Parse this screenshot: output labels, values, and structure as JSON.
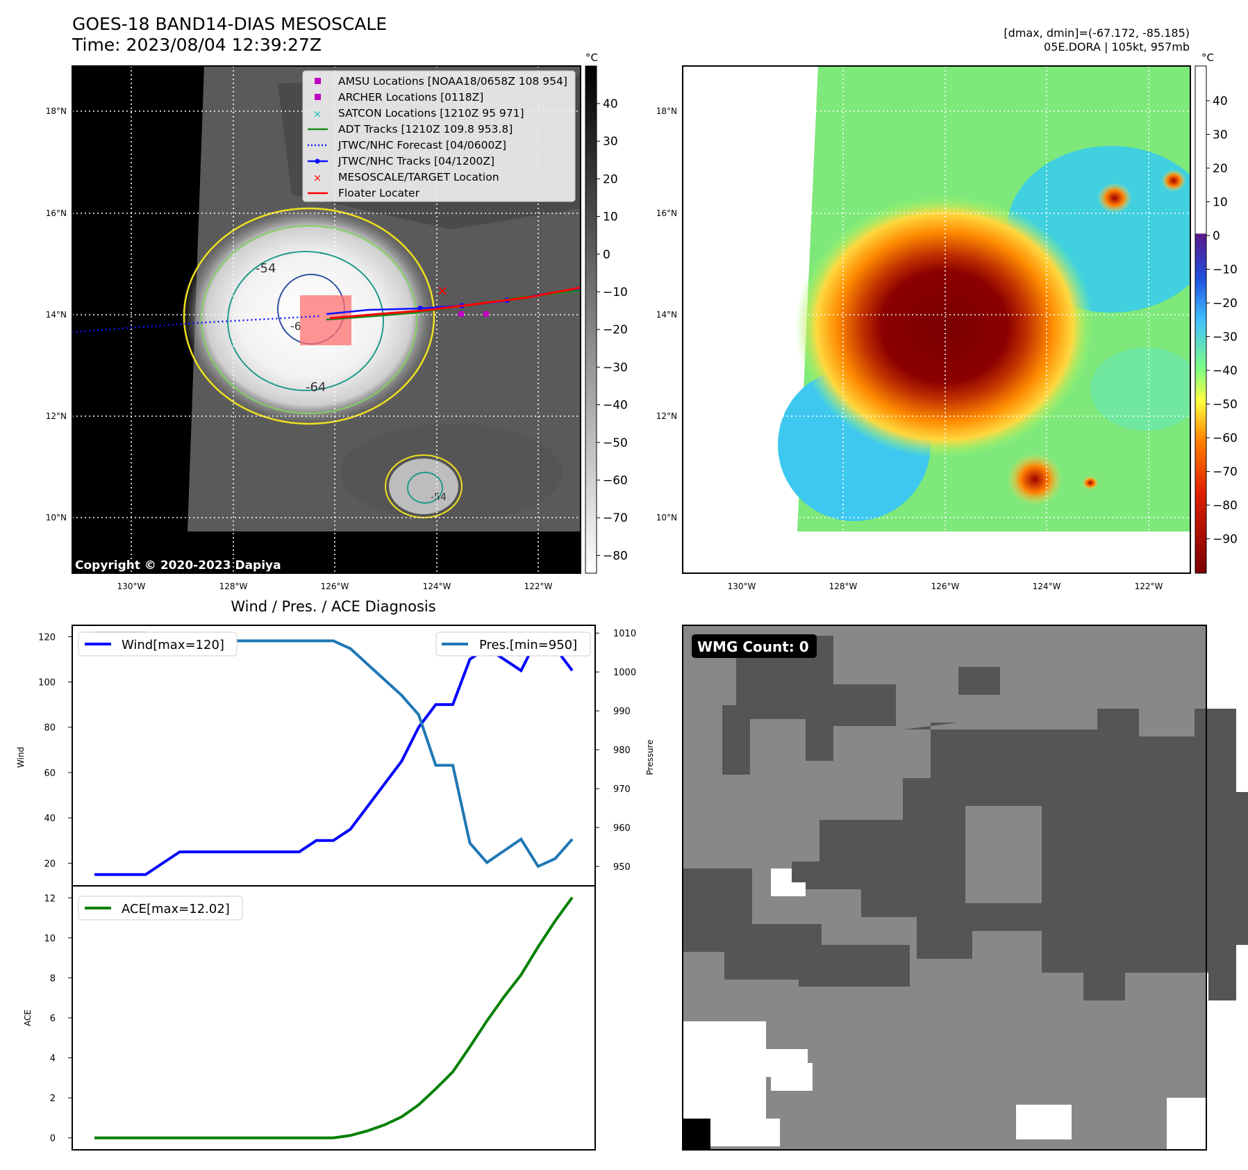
{
  "header": {
    "title_line1": "GOES-18 BAND14-DIAS MESOSCALE",
    "title_line2": "Time: 2023/08/04 12:39:27Z",
    "stats_line1": "[dmax, dmin]=(-67.172, -85.185)",
    "stats_line2": "05E.DORA | 105kt, 957mb"
  },
  "ir_map": {
    "lat_labels": [
      "18°N",
      "16°N",
      "14°N",
      "12°N",
      "10°N"
    ],
    "lon_labels": [
      "130°W",
      "128°W",
      "126°W",
      "124°W",
      "122°W"
    ],
    "copyright": "Copyright © 2020-2023 Dapiya",
    "contour_labels": [
      "-54",
      "-64",
      "-6",
      "-54"
    ],
    "legend": [
      {
        "label": "AMSU Locations [NOAA18/0658Z 108 954]",
        "color": "#c000c0",
        "marker": "square"
      },
      {
        "label": "ARCHER Locations [0118Z]",
        "color": "#c000c0",
        "marker": "square"
      },
      {
        "label": "SATCON Locations [1210Z 95 971]",
        "color": "#20c0c0",
        "marker": "x"
      },
      {
        "label": "ADT Tracks [1210Z 109.8 953.8]",
        "color": "#1a8a1a",
        "marker": "line"
      },
      {
        "label": "JTWC/NHC Forecast [04/0600Z]",
        "color": "#1010ff",
        "marker": "dotted"
      },
      {
        "label": "JTWC/NHC Tracks [04/1200Z]",
        "color": "#1010ff",
        "marker": "line-dot"
      },
      {
        "label": "MESOSCALE/TARGET Location",
        "color": "#ff0000",
        "marker": "x"
      },
      {
        "label": "Floater Locater",
        "color": "#ff0000",
        "marker": "line"
      }
    ],
    "colorbar": {
      "unit": "°C",
      "ticks": [
        "40",
        "30",
        "20",
        "10",
        "0",
        "−10",
        "−20",
        "−30",
        "−40",
        "−50",
        "−60",
        "−70",
        "−80"
      ]
    }
  },
  "color_map": {
    "lat_labels": [
      "18°N",
      "16°N",
      "14°N",
      "12°N",
      "10°N"
    ],
    "lon_labels": [
      "130°W",
      "128°W",
      "126°W",
      "124°W",
      "122°W"
    ],
    "colorbar": {
      "unit": "°C",
      "ticks": [
        "40",
        "30",
        "20",
        "10",
        "0",
        "−10",
        "−20",
        "−30",
        "−40",
        "−50",
        "−60",
        "−70",
        "−80",
        "−90"
      ]
    }
  },
  "wmg": {
    "count_label": "WMG Count: 0"
  },
  "chart_data": [
    {
      "type": "line",
      "title": "Wind / Pres. / ACE Diagnosis",
      "x": [
        0,
        1,
        2,
        3,
        4,
        5,
        6,
        7,
        8,
        9,
        10,
        11,
        12,
        13,
        14,
        15,
        16,
        17,
        18,
        19,
        20,
        21,
        22,
        23,
        24,
        25,
        26,
        27,
        28
      ],
      "series": [
        {
          "name": "Wind[max=120]",
          "axis": "Wind",
          "color": "#0000ff",
          "values": [
            15,
            15,
            15,
            15,
            20,
            25,
            25,
            25,
            25,
            25,
            25,
            25,
            25,
            30,
            30,
            35,
            45,
            55,
            65,
            80,
            90,
            90,
            110,
            115,
            110,
            105,
            120,
            115,
            105
          ]
        },
        {
          "name": "Pres.[min=950]",
          "axis": "Pressure",
          "color": "#1f77b4",
          "values": [
            1010,
            1010,
            1010,
            1010,
            1009,
            1009,
            1008,
            1008,
            1008,
            1008,
            1008,
            1008,
            1008,
            1008,
            1008,
            1006,
            1002,
            998,
            994,
            989,
            976,
            976,
            956,
            951,
            954,
            957,
            950,
            952,
            957
          ]
        }
      ],
      "ylabel_left": "Wind",
      "ylabel_right": "Pressure",
      "yticks_left": [
        20,
        40,
        60,
        80,
        100,
        120
      ],
      "yticks_right": [
        950,
        960,
        970,
        980,
        990,
        1000,
        1010
      ],
      "ylim_left": [
        10,
        125
      ],
      "ylim_right": [
        945,
        1012
      ]
    },
    {
      "type": "line",
      "x": [
        0,
        1,
        2,
        3,
        4,
        5,
        6,
        7,
        8,
        9,
        10,
        11,
        12,
        13,
        14,
        15,
        16,
        17,
        18,
        19,
        20,
        21,
        22,
        23,
        24,
        25,
        26,
        27,
        28
      ],
      "series": [
        {
          "name": "ACE[max=12.02]",
          "color": "#008000",
          "values": [
            0,
            0,
            0,
            0,
            0,
            0,
            0,
            0,
            0,
            0,
            0,
            0,
            0,
            0,
            0,
            0.12,
            0.35,
            0.65,
            1.05,
            1.65,
            2.45,
            3.3,
            4.55,
            5.85,
            7.05,
            8.15,
            9.55,
            10.85,
            12.02
          ]
        }
      ],
      "ylabel": "ACE",
      "yticks": [
        0,
        2,
        4,
        6,
        8,
        10,
        12
      ],
      "ylim": [
        -0.6,
        12.6
      ]
    }
  ]
}
